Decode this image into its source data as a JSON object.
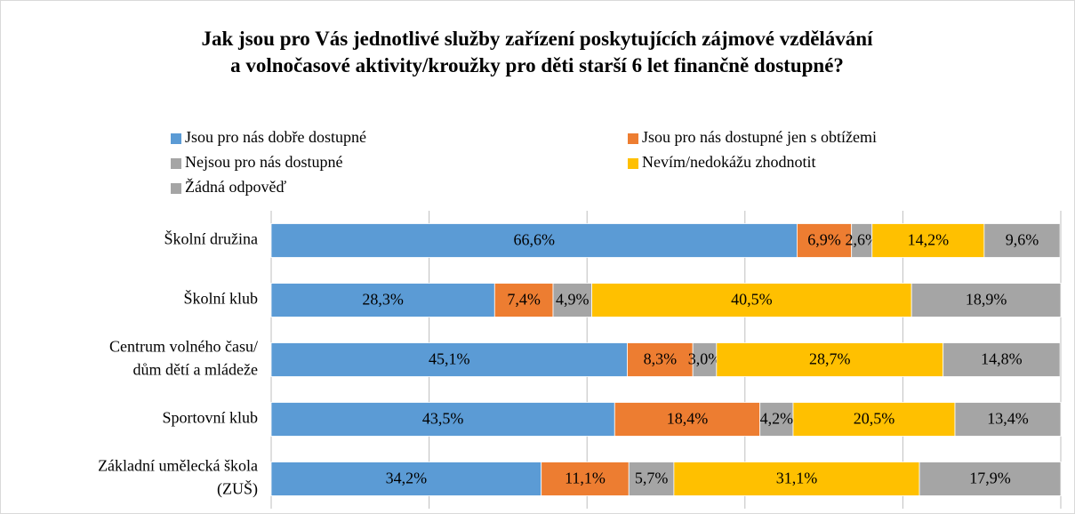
{
  "chart_data": {
    "type": "stacked_bar_horizontal",
    "title": "Jak jsou pro Vás jednotlivé služby zařízení poskytujících zájmové vzdělávání\na volnočasové aktivity/kroužky pro děti starší 6 let finančně dostupné?",
    "categories": [
      "Školní družina",
      "Školní klub",
      "Centrum volného času/\ndům dětí a mládeže",
      "Sportovní klub",
      "Základní umělecká škola\n(ZUŠ)"
    ],
    "series": [
      {
        "name": "Jsou pro nás dobře dostupné",
        "color": "#5b9bd5",
        "values": [
          66.6,
          28.3,
          45.1,
          43.5,
          34.2
        ],
        "value_labels": [
          "66,6%",
          "28,3%",
          "45,1%",
          "43,5%",
          "34,2%"
        ]
      },
      {
        "name": "Jsou pro nás dostupné jen s obtížemi",
        "color": "#ed7d31",
        "values": [
          6.9,
          7.4,
          8.3,
          18.4,
          11.1
        ],
        "value_labels": [
          "6,9%",
          "7,4%",
          "8,3%",
          "18,4%",
          "11,1%"
        ]
      },
      {
        "name": "Nejsou pro nás dostupné",
        "color": "#a5a5a5",
        "values": [
          2.6,
          4.9,
          3.0,
          4.2,
          5.7
        ],
        "value_labels": [
          "2,6%",
          "4,9%",
          "3,0%",
          "4,2%",
          "5,7%"
        ]
      },
      {
        "name": "Nevím/nedokážu zhodnotit",
        "color": "#ffc000",
        "values": [
          14.2,
          40.5,
          28.7,
          20.5,
          31.1
        ],
        "value_labels": [
          "14,2%",
          "40,5%",
          "28,7%",
          "20,5%",
          "31,1%"
        ]
      },
      {
        "name": "Žádná odpověď",
        "color": "#a5a5a5",
        "values": [
          9.6,
          18.9,
          14.8,
          13.4,
          17.9
        ],
        "value_labels": [
          "9,6%",
          "18,9%",
          "14,8%",
          "13,4%",
          "17,9%"
        ]
      }
    ],
    "xlim": [
      0,
      100
    ],
    "xticks": [
      0,
      20,
      40,
      60,
      80,
      100
    ],
    "grid": true,
    "legend": "top"
  }
}
